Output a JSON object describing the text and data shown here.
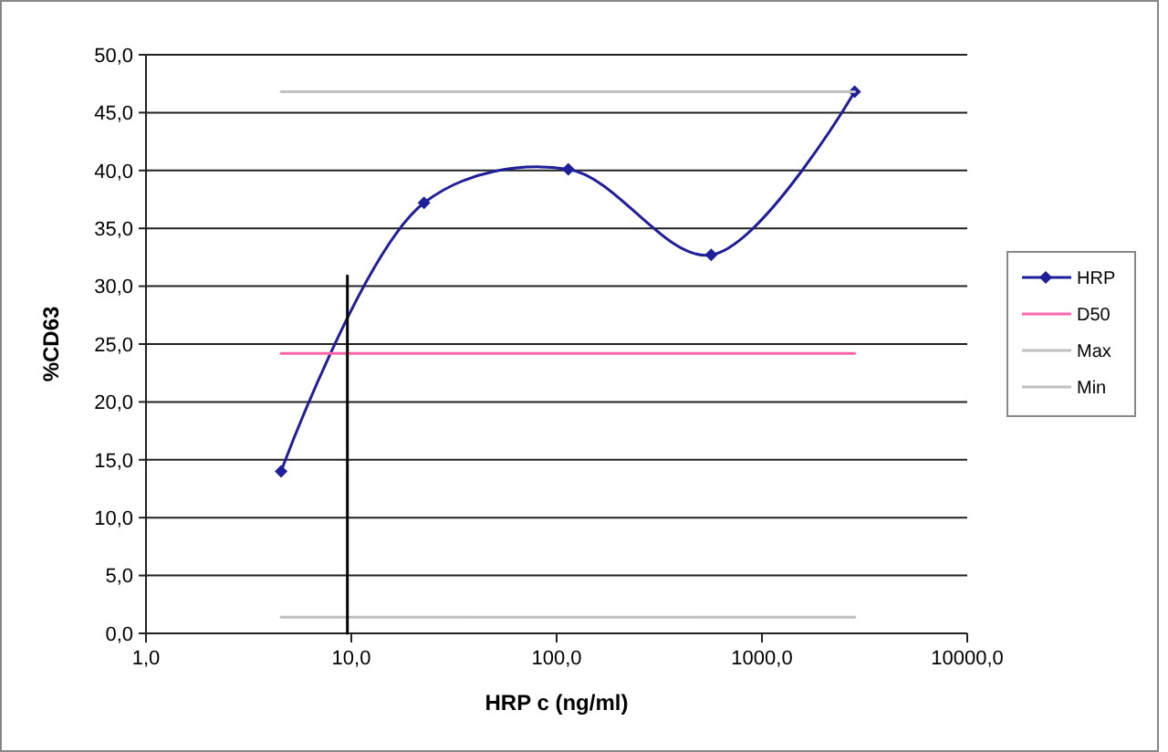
{
  "chart_data": {
    "type": "line",
    "xlabel": "HRP c (ng/ml)",
    "ylabel": "%CD63",
    "log": "x",
    "xlim": [
      1,
      10000
    ],
    "xticks": [
      {
        "value": 1,
        "label": "1,0"
      },
      {
        "value": 10,
        "label": "10,0"
      },
      {
        "value": 100,
        "label": "100,0"
      },
      {
        "value": 1000,
        "label": "1000,0"
      },
      {
        "value": 10000,
        "label": "10000,0"
      }
    ],
    "ylim": [
      0,
      50
    ],
    "yticks": [
      {
        "value": 0,
        "label": "0,0"
      },
      {
        "value": 5,
        "label": "5,0"
      },
      {
        "value": 10,
        "label": "10,0"
      },
      {
        "value": 15,
        "label": "15,0"
      },
      {
        "value": 20,
        "label": "20,0"
      },
      {
        "value": 25,
        "label": "25,0"
      },
      {
        "value": 30,
        "label": "30,0"
      },
      {
        "value": 35,
        "label": "35,0"
      },
      {
        "value": 40,
        "label": "40,0"
      },
      {
        "value": 45,
        "label": "45,0"
      },
      {
        "value": 50,
        "label": "50,0"
      }
    ],
    "grid": "y",
    "legend": "right",
    "series": [
      {
        "name": "HRP",
        "color": "#1f1f99",
        "x": [
          4.55,
          22.6,
          114,
          566,
          2830
        ],
        "values": [
          14.0,
          37.2,
          40.1,
          32.7,
          46.8
        ],
        "marker": "diamond"
      },
      {
        "name": "D50",
        "color": "#ff66aa",
        "x": [
          4.55,
          2830
        ],
        "values": [
          24.2,
          24.2
        ],
        "marker": "none"
      },
      {
        "name": "Max",
        "color": "#c0c0c0",
        "x": [
          4.55,
          2830
        ],
        "values": [
          46.8,
          46.8
        ],
        "marker": "none"
      },
      {
        "name": "Min",
        "color": "#c0c0c0",
        "x": [
          4.55,
          2830
        ],
        "values": [
          1.4,
          1.4
        ],
        "marker": "none"
      },
      {
        "color": "#000000",
        "x": [
          9.57,
          9.57
        ],
        "values": [
          0,
          30.9
        ],
        "marker": "none"
      }
    ]
  }
}
